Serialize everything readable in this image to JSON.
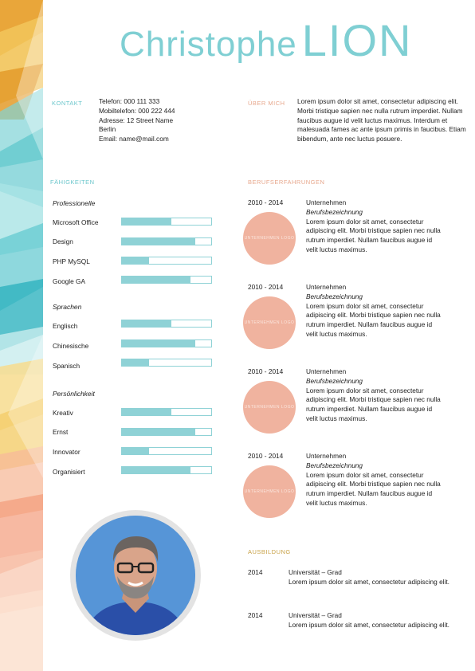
{
  "header": {
    "first_name": "Christophe",
    "last_name": "LION"
  },
  "kontakt": {
    "label": "KONTAKT",
    "lines": [
      "Telefon: 000 111 333",
      "Mobiltelefon: 000 222 444",
      "Adresse: 12 Street Name",
      "Berlin",
      "Email: name@mail.com"
    ]
  },
  "about": {
    "label": "ÜBER MICH",
    "text": "Lorem ipsum dolor sit amet, consectetur adipiscing elit. Morbi tristique sapien nec nulla rutrum imperdiet. Nullam faucibus augue id velit luctus maximus. Interdum et malesuada fames ac ante ipsum primis in faucibus. Etiam bibendum, ante nec luctus posuere."
  },
  "skills": {
    "label": "FÄHIGKEITEN",
    "groups": [
      {
        "title": "Professionelle",
        "items": [
          {
            "name": "Microsoft Office",
            "level": 0.55
          },
          {
            "name": "Design",
            "level": 0.82
          },
          {
            "name": "PHP MySQL",
            "level": 0.3
          },
          {
            "name": "Google GA",
            "level": 0.77
          }
        ]
      },
      {
        "title": "Sprachen",
        "items": [
          {
            "name": "Englisch",
            "level": 0.55
          },
          {
            "name": "Chinesische",
            "level": 0.82
          },
          {
            "name": "Spanisch",
            "level": 0.3
          }
        ]
      },
      {
        "title": "Persönlichkeit",
        "items": [
          {
            "name": "Kreativ",
            "level": 0.55
          },
          {
            "name": "Ernst",
            "level": 0.82
          },
          {
            "name": "Innovator",
            "level": 0.3
          },
          {
            "name": "Organisiert",
            "level": 0.77
          }
        ]
      }
    ]
  },
  "experience": {
    "label": "BERUFSERFAHRUNGEN",
    "items": [
      {
        "years": "2010 - 2014",
        "logo": "UNTERNEHMEN LOGO",
        "company": "Unternehmen",
        "title": "Berufsbezeichnung",
        "text": "Lorem ipsum dolor sit amet, consectetur adipiscing elit. Morbi tristique sapien nec nulla rutrum imperdiet. Nullam faucibus augue id velit luctus maximus."
      },
      {
        "years": "2010 - 2014",
        "logo": "UNTERNEHMEN LOGO",
        "company": "Unternehmen",
        "title": "Berufsbezeichnung",
        "text": "Lorem ipsum dolor sit amet, consectetur adipiscing elit. Morbi tristique sapien nec nulla rutrum imperdiet. Nullam faucibus augue id velit luctus maximus."
      },
      {
        "years": "2010 - 2014",
        "logo": "UNTERNEHMEN LOGO",
        "company": "Unternehmen",
        "title": "Berufsbezeichnung",
        "text": "Lorem ipsum dolor sit amet, consectetur adipiscing elit. Morbi tristique sapien nec nulla rutrum imperdiet. Nullam faucibus augue id velit luctus maximus."
      },
      {
        "years": "2010 - 2014",
        "logo": "UNTERNEHMEN LOGO",
        "company": "Unternehmen",
        "title": "Berufsbezeichnung",
        "text": "Lorem ipsum dolor sit amet, consectetur adipiscing elit. Morbi tristique sapien nec nulla rutrum imperdiet. Nullam faucibus augue id velit luctus maximus."
      }
    ]
  },
  "education": {
    "label": "AUSBILDUNG",
    "items": [
      {
        "year": "2014",
        "title": "Universität – Grad",
        "text": "Lorem ipsum dolor sit amet, consectetur adipiscing elit."
      },
      {
        "year": "2014",
        "title": "Universität – Grad",
        "text": "Lorem ipsum dolor sit amet, consectetur adipiscing elit."
      }
    ]
  },
  "colors": {
    "name": "#7fcfd3",
    "bar": "#8fd2d6",
    "logo": "#f0b39f",
    "accent_gold": "#c9a34a"
  }
}
